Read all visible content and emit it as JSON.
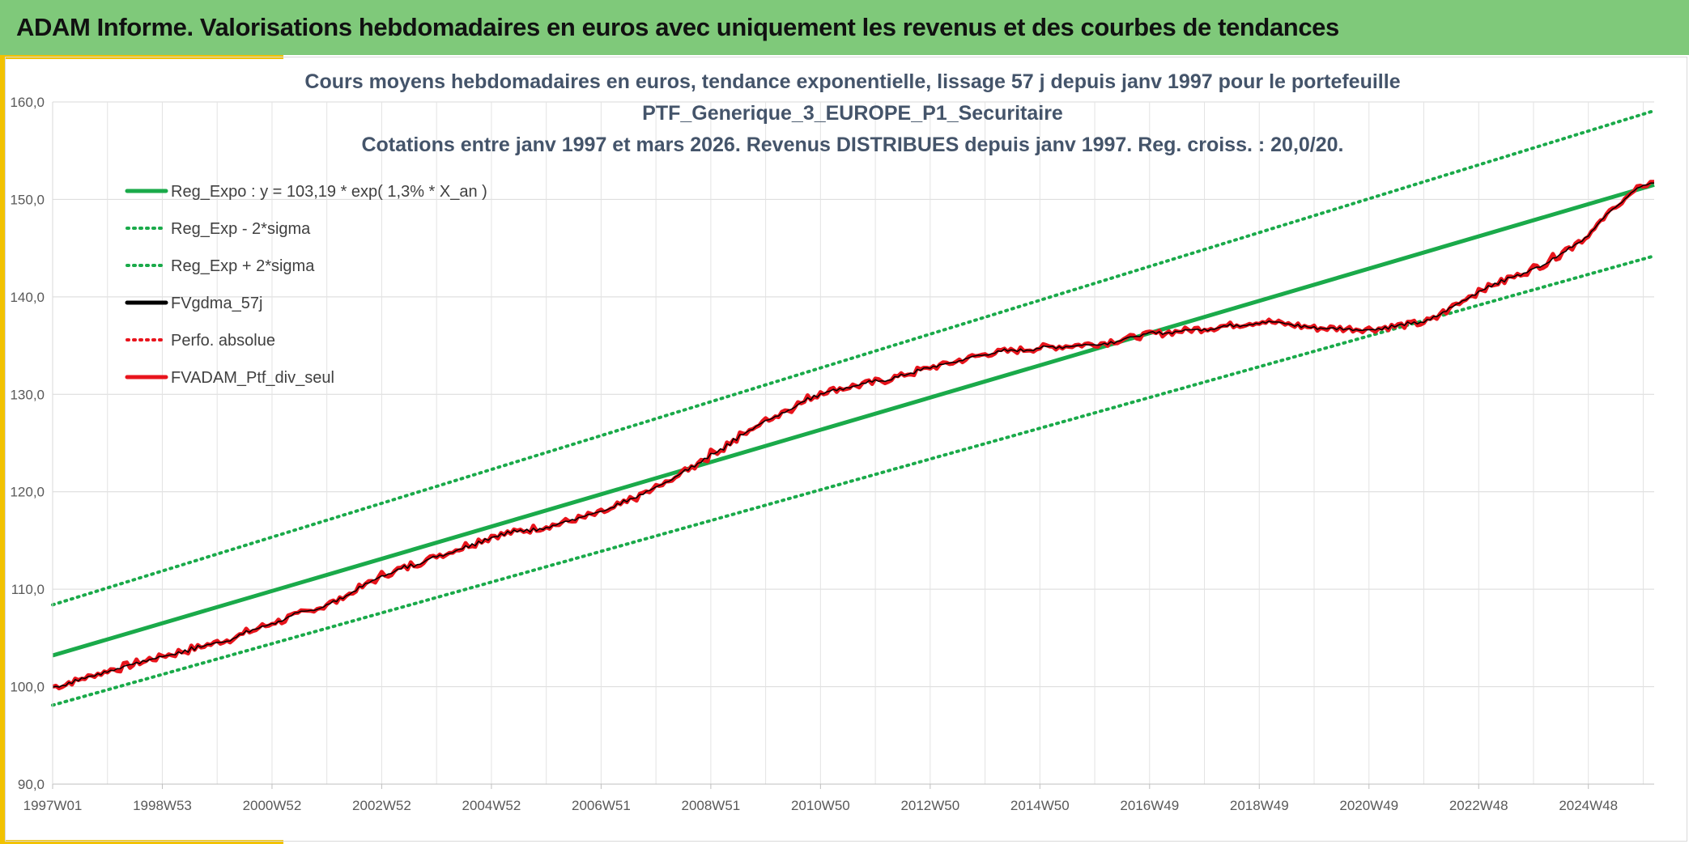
{
  "header": {
    "title": "ADAM Informe. Valorisations hebdomadaires en euros avec uniquement les revenus et des courbes de tendances"
  },
  "colors": {
    "header_bg": "#7fc97a",
    "accent_yellow": "#f2c200",
    "trend_green": "#1aaa4a",
    "smooth_black": "#000000",
    "portfolio_red": "#e8141c",
    "title_text": "#44546a"
  },
  "chart_data": {
    "type": "line",
    "title_lines": [
      "Cours moyens hebdomadaires en euros, tendance exponentielle, lissage 57 j depuis janv 1997 pour le portefeuille",
      "PTF_Generique_3_EUROPE_P1_Securitaire",
      "Cotations entre janv 1997 et mars 2026. Revenus DISTRIBUES depuis janv 1997. Reg. croiss. : 20,0/20."
    ],
    "ylim": [
      90,
      160
    ],
    "y_ticks": [
      "90,0",
      "100,0",
      "110,0",
      "120,0",
      "130,0",
      "140,0",
      "150,0",
      "160,0"
    ],
    "x_range": [
      1997.0,
      2026.2
    ],
    "x_ticks": [
      {
        "label": "1997W01",
        "x": 1997.0
      },
      {
        "label": "1998W53",
        "x": 1999.0
      },
      {
        "label": "2000W52",
        "x": 2001.0
      },
      {
        "label": "2002W52",
        "x": 2003.0
      },
      {
        "label": "2004W52",
        "x": 2005.0
      },
      {
        "label": "2006W51",
        "x": 2007.0
      },
      {
        "label": "2008W51",
        "x": 2009.0
      },
      {
        "label": "2010W50",
        "x": 2011.0
      },
      {
        "label": "2012W50",
        "x": 2013.0
      },
      {
        "label": "2014W50",
        "x": 2015.0
      },
      {
        "label": "2016W49",
        "x": 2017.0
      },
      {
        "label": "2018W49",
        "x": 2019.0
      },
      {
        "label": "2020W49",
        "x": 2021.0
      },
      {
        "label": "2022W48",
        "x": 2023.0
      },
      {
        "label": "2024W48",
        "x": 2025.0
      }
    ],
    "grid": true,
    "legend_position": "top-left",
    "series": [
      {
        "name": "Reg_Expo : y = 103,19 * exp( 1,3% *  X_an )",
        "style": "solid-green",
        "x": [
          1997.0,
          2026.2
        ],
        "y": [
          103.2,
          151.5
        ]
      },
      {
        "name": "Reg_Exp - 2*sigma",
        "style": "dotted-green",
        "x": [
          1997.0,
          2026.2
        ],
        "y": [
          98.1,
          144.2
        ]
      },
      {
        "name": "Reg_Exp + 2*sigma",
        "style": "dotted-green",
        "x": [
          1997.0,
          2026.2
        ],
        "y": [
          108.4,
          159.1
        ]
      },
      {
        "name": "FVgdma_57j",
        "style": "solid-black-thin"
      },
      {
        "name": "Perfo. absolue",
        "style": "dotted-red"
      },
      {
        "name": "FVADAM_Ptf_div_seul",
        "style": "solid-red-thick",
        "x": [
          1997.0,
          1998.0,
          1999.0,
          2000.0,
          2001.0,
          2002.0,
          2003.0,
          2004.0,
          2005.0,
          2006.0,
          2007.0,
          2008.0,
          2009.0,
          2010.0,
          2011.0,
          2012.0,
          2013.0,
          2014.0,
          2015.0,
          2016.0,
          2017.0,
          2018.0,
          2019.0,
          2020.0,
          2021.0,
          2022.0,
          2023.0,
          2024.0,
          2025.0,
          2025.5,
          2026.0,
          2026.2
        ],
        "y": [
          100.0,
          101.7,
          103.2,
          104.6,
          106.6,
          108.5,
          111.5,
          113.5,
          115.5,
          116.5,
          117.9,
          120.5,
          124.0,
          127.5,
          130.3,
          131.3,
          132.8,
          134.2,
          134.8,
          135.2,
          136.2,
          136.8,
          137.5,
          136.8,
          136.7,
          137.4,
          140.8,
          143.0,
          146.5,
          149.5,
          151.5,
          151.8
        ]
      }
    ]
  }
}
